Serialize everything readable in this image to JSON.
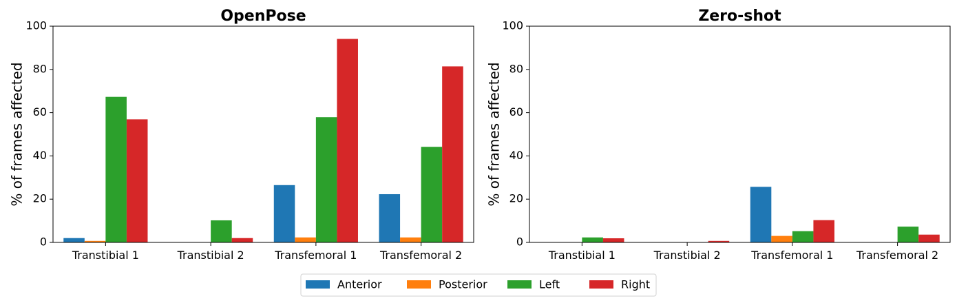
{
  "chart_data": [
    {
      "type": "bar",
      "title": "OpenPose",
      "xlabel": "",
      "ylabel": "% of frames affected",
      "ylim": [
        0,
        100
      ],
      "yticks": [
        0,
        20,
        40,
        60,
        80,
        100
      ],
      "categories": [
        "Transtibial 1",
        "Transtibial 2",
        "Transfemoral 1",
        "Transfemoral 2"
      ],
      "series": [
        {
          "name": "Anterior",
          "values": [
            2.0,
            0.0,
            26.5,
            22.3
          ]
        },
        {
          "name": "Posterior",
          "values": [
            0.7,
            0.0,
            2.3,
            2.3
          ]
        },
        {
          "name": "Left",
          "values": [
            67.3,
            10.2,
            57.9,
            44.2
          ]
        },
        {
          "name": "Right",
          "values": [
            56.9,
            2.0,
            94.1,
            81.4
          ]
        }
      ]
    },
    {
      "type": "bar",
      "title": "Zero-shot",
      "xlabel": "",
      "ylabel": "% of frames affected",
      "ylim": [
        0,
        100
      ],
      "yticks": [
        0,
        20,
        40,
        60,
        80,
        100
      ],
      "categories": [
        "Transtibial 1",
        "Transtibial 2",
        "Transfemoral 1",
        "Transfemoral 2"
      ],
      "series": [
        {
          "name": "Anterior",
          "values": [
            0.0,
            0.0,
            25.7,
            0.0
          ]
        },
        {
          "name": "Posterior",
          "values": [
            0.0,
            0.0,
            3.0,
            0.0
          ]
        },
        {
          "name": "Left",
          "values": [
            2.3,
            0.0,
            5.2,
            7.3
          ]
        },
        {
          "name": "Right",
          "values": [
            1.9,
            0.7,
            10.3,
            3.6
          ]
        }
      ]
    }
  ],
  "legend": {
    "placement": "bottom-center",
    "items": [
      "Anterior",
      "Posterior",
      "Left",
      "Right"
    ]
  },
  "colors": {
    "Anterior": "#1f77b4",
    "Posterior": "#ff7f0e",
    "Left": "#2ca02c",
    "Right": "#d62728"
  }
}
